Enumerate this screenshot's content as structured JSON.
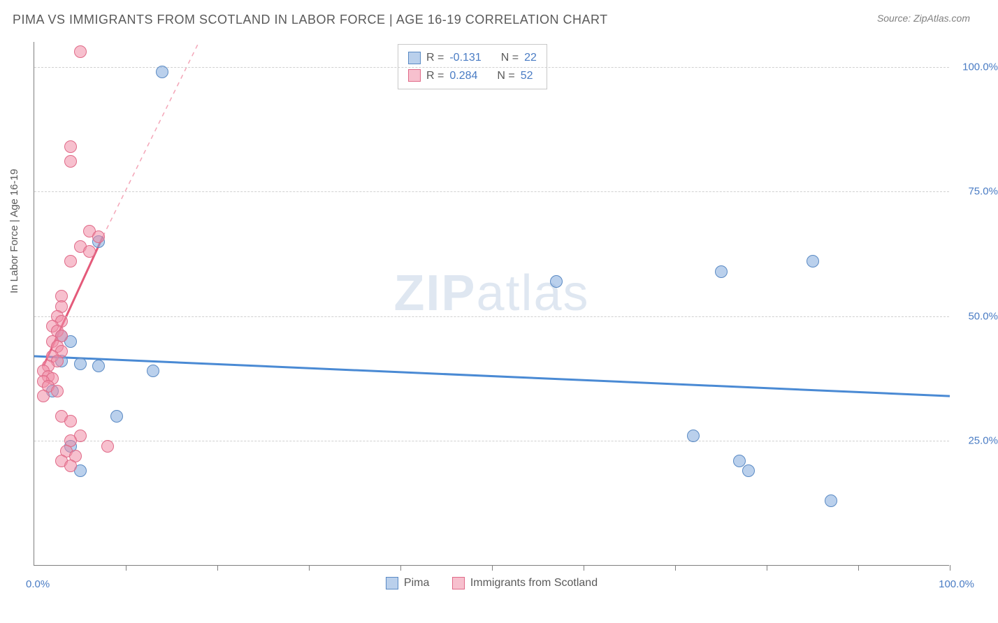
{
  "title": "PIMA VS IMMIGRANTS FROM SCOTLAND IN LABOR FORCE | AGE 16-19 CORRELATION CHART",
  "source": "Source: ZipAtlas.com",
  "y_axis_label": "In Labor Force | Age 16-19",
  "watermark_bold": "ZIP",
  "watermark_rest": "atlas",
  "chart": {
    "type": "scatter",
    "background_color": "#ffffff",
    "grid_color": "#d0d0d0",
    "axis_color": "#808080",
    "text_color": "#5a5a5a",
    "value_color": "#4a7cc4",
    "xlim": [
      0,
      100
    ],
    "ylim": [
      0,
      105
    ],
    "x_tick_positions": [
      0,
      10,
      20,
      30,
      40,
      50,
      60,
      70,
      80,
      90,
      100
    ],
    "x_tick_labels": {
      "0": "0.0%",
      "100": "100.0%"
    },
    "y_grid": [
      {
        "y": 25,
        "label": "25.0%"
      },
      {
        "y": 50,
        "label": "50.0%"
      },
      {
        "y": 75,
        "label": "75.0%"
      },
      {
        "y": 100,
        "label": "100.0%"
      }
    ],
    "point_radius": 9,
    "series": [
      {
        "name": "Pima",
        "fill": "rgba(130,170,220,0.55)",
        "stroke": "#5a8ac4",
        "R": "-0.131",
        "N": "22",
        "trend": {
          "x1": 0,
          "y1": 42,
          "x2": 100,
          "y2": 34,
          "color": "#4a8ad4"
        },
        "points": [
          {
            "x": 14,
            "y": 99
          },
          {
            "x": 7,
            "y": 65
          },
          {
            "x": 57,
            "y": 57
          },
          {
            "x": 75,
            "y": 59
          },
          {
            "x": 85,
            "y": 61
          },
          {
            "x": 3,
            "y": 46
          },
          {
            "x": 4,
            "y": 45
          },
          {
            "x": 3,
            "y": 41
          },
          {
            "x": 5,
            "y": 40.5
          },
          {
            "x": 7,
            "y": 40
          },
          {
            "x": 13,
            "y": 39
          },
          {
            "x": 2,
            "y": 35
          },
          {
            "x": 9,
            "y": 30
          },
          {
            "x": 72,
            "y": 26
          },
          {
            "x": 4,
            "y": 24
          },
          {
            "x": 77,
            "y": 21
          },
          {
            "x": 78,
            "y": 19
          },
          {
            "x": 5,
            "y": 19
          },
          {
            "x": 87,
            "y": 13
          }
        ]
      },
      {
        "name": "Immigrants from Scotland",
        "fill": "rgba(240,140,165,0.55)",
        "stroke": "#e06a88",
        "R": "0.284",
        "N": "52",
        "trend_solid": {
          "x1": 1,
          "y1": 40,
          "x2": 7.5,
          "y2": 66,
          "color": "#e45a7a"
        },
        "trend_dash": {
          "x1": 7.5,
          "y1": 66,
          "x2": 18,
          "y2": 105,
          "color": "#f4a6b8"
        },
        "points": [
          {
            "x": 5,
            "y": 103
          },
          {
            "x": 4,
            "y": 84
          },
          {
            "x": 4,
            "y": 81
          },
          {
            "x": 6,
            "y": 67
          },
          {
            "x": 7,
            "y": 66
          },
          {
            "x": 5,
            "y": 64
          },
          {
            "x": 6,
            "y": 63
          },
          {
            "x": 4,
            "y": 61
          },
          {
            "x": 3,
            "y": 54
          },
          {
            "x": 3,
            "y": 52
          },
          {
            "x": 2.5,
            "y": 50
          },
          {
            "x": 3,
            "y": 49
          },
          {
            "x": 2,
            "y": 48
          },
          {
            "x": 2.5,
            "y": 47
          },
          {
            "x": 3,
            "y": 46
          },
          {
            "x": 2,
            "y": 45
          },
          {
            "x": 2.5,
            "y": 44
          },
          {
            "x": 3,
            "y": 43
          },
          {
            "x": 2,
            "y": 42
          },
          {
            "x": 2.5,
            "y": 41
          },
          {
            "x": 1.5,
            "y": 40
          },
          {
            "x": 1,
            "y": 39
          },
          {
            "x": 1.5,
            "y": 38
          },
          {
            "x": 2,
            "y": 37.5
          },
          {
            "x": 1,
            "y": 37
          },
          {
            "x": 1.5,
            "y": 36
          },
          {
            "x": 2.5,
            "y": 35
          },
          {
            "x": 1,
            "y": 34
          },
          {
            "x": 3,
            "y": 30
          },
          {
            "x": 4,
            "y": 29
          },
          {
            "x": 5,
            "y": 26
          },
          {
            "x": 4,
            "y": 25
          },
          {
            "x": 8,
            "y": 24
          },
          {
            "x": 3.5,
            "y": 23
          },
          {
            "x": 4.5,
            "y": 22
          },
          {
            "x": 3,
            "y": 21
          },
          {
            "x": 4,
            "y": 20
          }
        ]
      }
    ]
  },
  "legend_bottom": {
    "items": [
      "Pima",
      "Immigrants from Scotland"
    ]
  },
  "legend_top_labels": {
    "R": "R =",
    "N": "N ="
  }
}
